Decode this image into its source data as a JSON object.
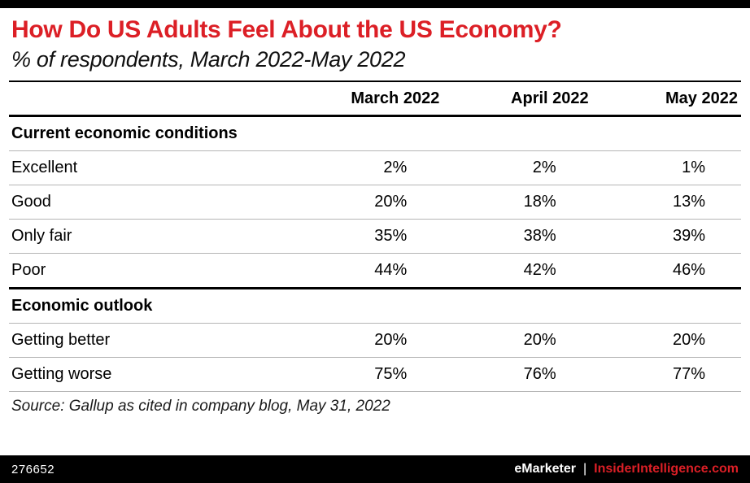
{
  "header": {
    "title": "How Do US Adults Feel About the US Economy?",
    "subtitle": "% of respondents, March 2022-May 2022"
  },
  "table": {
    "columns": [
      "March 2022",
      "April 2022",
      "May 2022"
    ],
    "sections": [
      {
        "label": "Current economic conditions",
        "rows": [
          {
            "label": "Excellent",
            "values": [
              "2%",
              "2%",
              "1%"
            ]
          },
          {
            "label": "Good",
            "values": [
              "20%",
              "18%",
              "13%"
            ]
          },
          {
            "label": "Only fair",
            "values": [
              "35%",
              "38%",
              "39%"
            ]
          },
          {
            "label": "Poor",
            "values": [
              "44%",
              "42%",
              "46%"
            ]
          }
        ]
      },
      {
        "label": "Economic outlook",
        "rows": [
          {
            "label": "Getting better",
            "values": [
              "20%",
              "20%",
              "20%"
            ]
          },
          {
            "label": "Getting worse",
            "values": [
              "75%",
              "76%",
              "77%"
            ]
          }
        ]
      }
    ],
    "source": "Source: Gallup as cited in company blog, May 31, 2022"
  },
  "footer": {
    "chart_id": "276652",
    "brand": "eMarketer",
    "separator": "|",
    "site": "InsiderIntelligence.com"
  },
  "colors": {
    "accent": "#dc1f26",
    "bar": "#000000"
  },
  "chart_data": {
    "type": "table",
    "title": "How Do US Adults Feel About the US Economy?",
    "subtitle": "% of respondents, March 2022-May 2022",
    "columns": [
      "March 2022",
      "April 2022",
      "May 2022"
    ],
    "sections": [
      {
        "name": "Current economic conditions",
        "rows": [
          {
            "label": "Excellent",
            "values_pct": [
              2,
              2,
              1
            ]
          },
          {
            "label": "Good",
            "values_pct": [
              20,
              18,
              13
            ]
          },
          {
            "label": "Only fair",
            "values_pct": [
              35,
              38,
              39
            ]
          },
          {
            "label": "Poor",
            "values_pct": [
              44,
              42,
              46
            ]
          }
        ]
      },
      {
        "name": "Economic outlook",
        "rows": [
          {
            "label": "Getting better",
            "values_pct": [
              20,
              20,
              20
            ]
          },
          {
            "label": "Getting worse",
            "values_pct": [
              75,
              76,
              77
            ]
          }
        ]
      }
    ],
    "source": "Source: Gallup as cited in company blog, May 31, 2022",
    "unit": "%"
  }
}
